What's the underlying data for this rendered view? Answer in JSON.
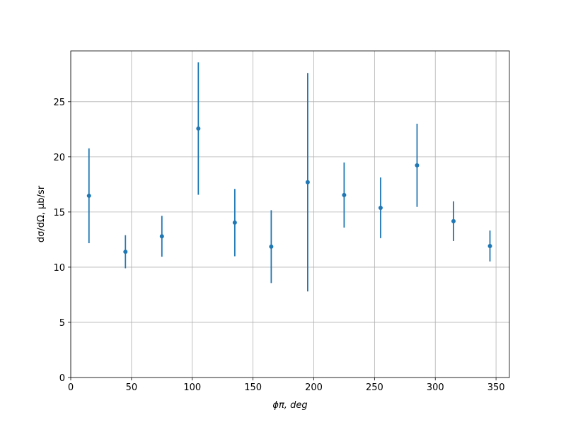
{
  "chart_data": {
    "type": "errorbar",
    "x_label": "ϕπ, deg",
    "y_label": "dσ/dΩ, μb/sr",
    "series": [
      {
        "color": "#1f77b4",
        "x": [
          15,
          45,
          75,
          105,
          135,
          165,
          195,
          225,
          255,
          285,
          315,
          345
        ],
        "values": [
          16.47,
          11.4,
          12.8,
          22.56,
          14.04,
          11.86,
          17.7,
          16.54,
          15.38,
          19.23,
          14.17,
          11.92
        ],
        "errors": [
          4.3,
          1.5,
          1.85,
          6.0,
          3.05,
          3.3,
          9.9,
          2.95,
          2.75,
          3.77,
          1.8,
          1.4
        ]
      }
    ],
    "xlim": [
      0,
      361
    ],
    "xticks": [
      0,
      50,
      100,
      150,
      200,
      250,
      300,
      350
    ],
    "ylim": [
      0,
      29.6
    ],
    "yticks": [
      0,
      5,
      10,
      15,
      20,
      25
    ],
    "grid": true
  }
}
